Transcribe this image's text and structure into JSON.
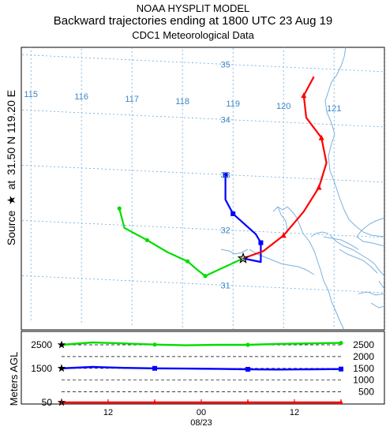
{
  "title": {
    "line1": "NOAA HYSPLIT MODEL",
    "line2": "Backward trajectories ending at 1800 UTC 23 Aug 19",
    "line3": "CDC1 Meteorological Data"
  },
  "side_label": {
    "source": "Source",
    "star_glyph": "★",
    "at": "at",
    "coords": "31.50 N  119.20 E"
  },
  "agl_label": "Meters AGL",
  "map": {
    "longitude_labels": [
      "115",
      "116",
      "117",
      "118",
      "119",
      "120",
      "121"
    ],
    "latitude_labels": [
      "31",
      "32",
      "33",
      "34",
      "35"
    ],
    "source": {
      "lon": 119.2,
      "lat": 31.5,
      "marker": "star"
    },
    "grid_color": "#6aa9dc",
    "coast_color": "#7ab0dc"
  },
  "chart_data": {
    "type": "line",
    "title": "Backward trajectories ending at 1800 UTC 23 Aug 19",
    "start_height_labels": [
      "2500",
      "1500",
      "50"
    ],
    "right_height_labels": [
      "2500",
      "2000",
      "1500",
      "1000",
      "500"
    ],
    "time_ticks": [
      "12",
      "00",
      "12"
    ],
    "date_label": "08/23",
    "series": [
      {
        "color": "#00dd00",
        "start_height_m": 2500,
        "marker": "circle",
        "path_lonlat": [
          [
            119.2,
            31.5
          ],
          [
            118.6,
            31.22
          ],
          [
            118.45,
            31.15
          ],
          [
            118.3,
            31.25
          ],
          [
            118.1,
            31.4
          ],
          [
            117.7,
            31.55
          ],
          [
            117.3,
            31.75
          ],
          [
            116.85,
            31.95
          ],
          [
            116.75,
            32.3
          ]
        ],
        "height_profile_m": [
          2500,
          2600,
          2560,
          2510,
          2480,
          2500,
          2500,
          2540,
          2560,
          2580
        ]
      },
      {
        "color": "#0000ff",
        "start_height_m": 1500,
        "marker": "square",
        "path_lonlat": [
          [
            119.2,
            31.5
          ],
          [
            119.55,
            31.45
          ],
          [
            119.55,
            31.8
          ],
          [
            119.45,
            31.95
          ],
          [
            119.0,
            32.3
          ],
          [
            118.85,
            32.55
          ],
          [
            118.85,
            33.0
          ]
        ],
        "height_profile_m": [
          1500,
          1560,
          1520,
          1500,
          1490,
          1480,
          1460,
          1450,
          1460,
          1470
        ]
      },
      {
        "color": "#ff0000",
        "start_height_m": 50,
        "marker": "triangle",
        "path_lonlat": [
          [
            119.2,
            31.5
          ],
          [
            119.6,
            31.65
          ],
          [
            120.0,
            31.95
          ],
          [
            120.4,
            32.4
          ],
          [
            120.7,
            32.85
          ],
          [
            120.85,
            33.3
          ],
          [
            120.75,
            33.75
          ],
          [
            120.45,
            34.1
          ],
          [
            120.4,
            34.5
          ],
          [
            120.6,
            34.85
          ]
        ],
        "height_profile_m": [
          50,
          50,
          50,
          50,
          50,
          50,
          50,
          50,
          50,
          50
        ]
      }
    ]
  }
}
